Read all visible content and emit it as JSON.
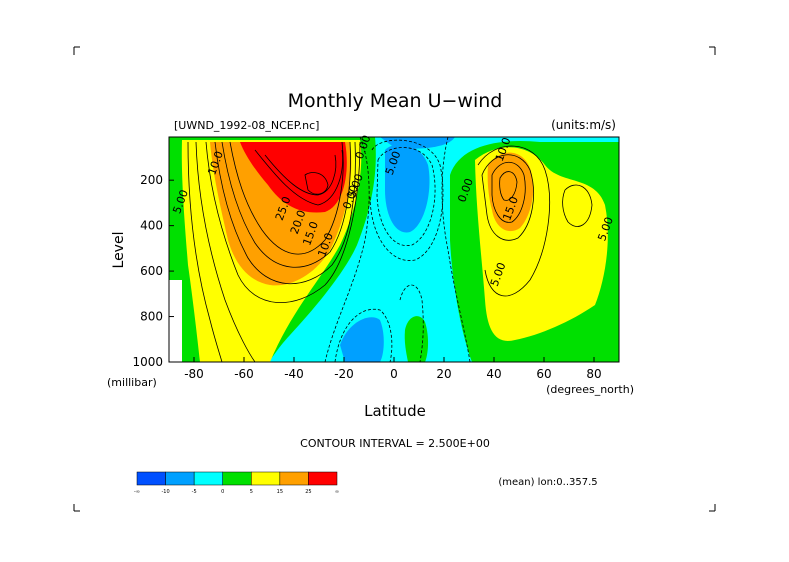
{
  "chart_data": {
    "type": "heatmap",
    "title": "Monthly Mean U−wind",
    "dataset_label": "[UWND_1992-08_NCEP.nc]",
    "units_label": "(units:m/s)",
    "xlabel": "Latitude",
    "xunits": "(degrees_north)",
    "ylabel": "Level",
    "yunits": "(millibar)",
    "xlim": [
      -90,
      90
    ],
    "ylim": [
      1000,
      10
    ],
    "x_ticks": [
      -80,
      -60,
      -40,
      -20,
      0,
      20,
      40,
      60,
      80
    ],
    "y_ticks": [
      200,
      400,
      600,
      800,
      1000
    ],
    "contour_interval_text": "CONTOUR INTERVAL = 2.500E+00",
    "mean_note": "(mean) lon:0..357.5",
    "contour_labels": [
      {
        "text": "10.0",
        "lat": -70,
        "lev": 130
      },
      {
        "text": "5.00",
        "lat": -84,
        "lev": 300
      },
      {
        "text": "25.0",
        "lat": -43,
        "lev": 330
      },
      {
        "text": "20.0",
        "lat": -37,
        "lev": 390
      },
      {
        "text": "15.0",
        "lat": -32,
        "lev": 440
      },
      {
        "text": "10.0",
        "lat": -26,
        "lev": 490
      },
      {
        "text": "0.00",
        "lat": -16,
        "lev": 280
      },
      {
        "text": "5.00",
        "lat": -14,
        "lev": 230
      },
      {
        "text": "0.00",
        "lat": -11,
        "lev": 60
      },
      {
        "text": "5.00",
        "lat": 1,
        "lev": 130
      },
      {
        "text": "0.00",
        "lat": 30,
        "lev": 250
      },
      {
        "text": "10.0",
        "lat": 45,
        "lev": 70
      },
      {
        "text": "15.0",
        "lat": 48,
        "lev": 330
      },
      {
        "text": "5.00",
        "lat": 43,
        "lev": 620
      },
      {
        "text": "5.00",
        "lat": 86,
        "lev": 420
      }
    ],
    "color_scale": {
      "colors": [
        "#0050ff",
        "#00a0ff",
        "#00ffff",
        "#00e000",
        "#ffff00",
        "#ffa000",
        "#ff0000"
      ],
      "labels": [
        "-∞",
        "-10",
        "-5",
        "0",
        "5",
        "15",
        "25",
        "∞"
      ]
    }
  }
}
